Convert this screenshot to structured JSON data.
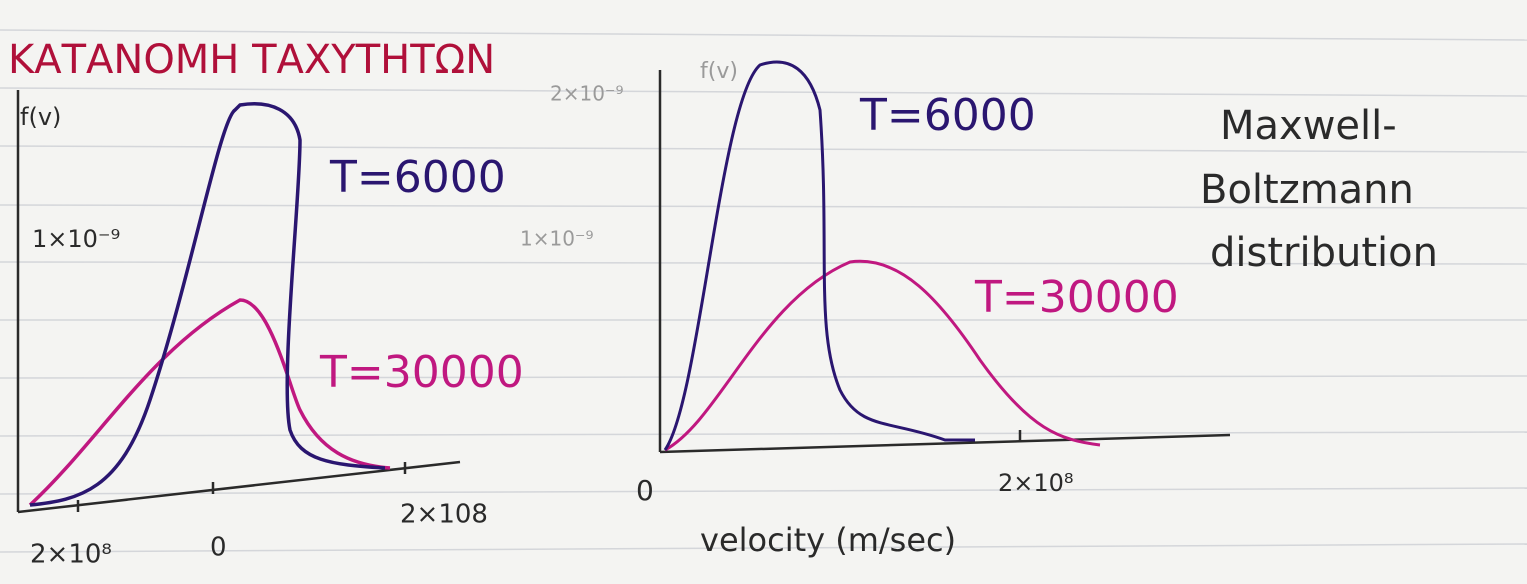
{
  "title": "ΚΑΤΑΝΟΜΗ ΤΑΧΥΤΗΤΩΝ",
  "left_graph": {
    "y_label": "f(v)",
    "y_tick": "1×10⁻⁹",
    "curves": [
      "T=6000",
      "T=30000"
    ],
    "x_ticks": [
      "2×10⁸",
      "0",
      "2×108"
    ]
  },
  "right_graph": {
    "y_label": "f(v)",
    "y_ticks": [
      "2×10⁻⁹",
      "1×10⁻⁹"
    ],
    "curves": [
      "T=6000",
      "T=30000"
    ],
    "x_ticks": [
      "0",
      "2×10⁸"
    ],
    "x_label": "velocity (m/sec)"
  },
  "note": [
    "Maxwell-",
    "Boltzmann",
    "distribution"
  ]
}
